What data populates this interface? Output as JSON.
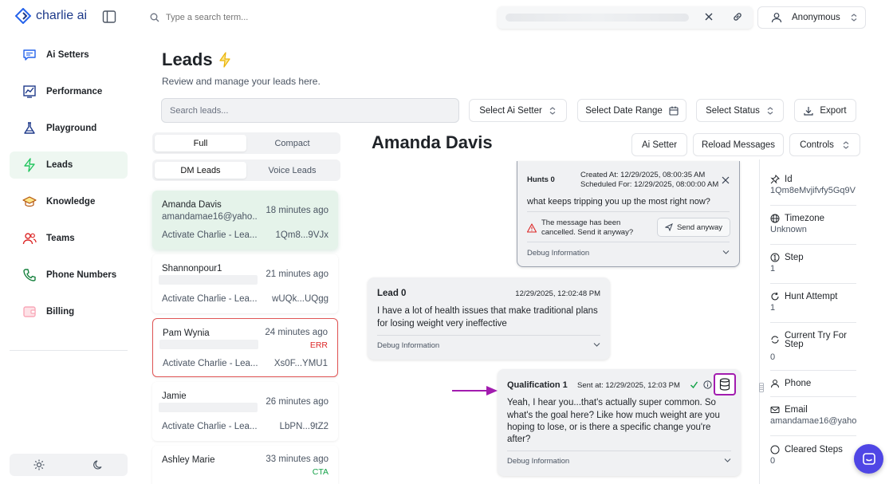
{
  "app": {
    "name": "charlie ai"
  },
  "colors": {
    "brand": "#1e3a8a",
    "active_bg": "#eef7f1",
    "accent_purple": "#a21caf",
    "err": "#dc2626",
    "cta": "#16a34a",
    "fab": "#4f46e5"
  },
  "sidebar": {
    "items": [
      {
        "label": "Ai Setters",
        "icon": "chat-icon"
      },
      {
        "label": "Performance",
        "icon": "chart-icon"
      },
      {
        "label": "Playground",
        "icon": "flask-icon"
      },
      {
        "label": "Leads",
        "icon": "bolt-icon",
        "active": true
      },
      {
        "label": "Knowledge",
        "icon": "graduation-cap-icon"
      },
      {
        "label": "Teams",
        "icon": "users-icon"
      },
      {
        "label": "Phone Numbers",
        "icon": "phone-icon"
      },
      {
        "label": "Billing",
        "icon": "wallet-icon"
      }
    ]
  },
  "topbar": {
    "search_placeholder": "Type a search term...",
    "user": "Anonymous"
  },
  "leads_page": {
    "title": "Leads",
    "subtitle": "Review and manage your leads here.",
    "search_placeholder": "Search leads...",
    "filters": {
      "ai_setter": "Select Ai Setter",
      "date_range": "Select Date Range",
      "status": "Select Status",
      "export": "Export"
    },
    "view_tabs": {
      "full": "Full",
      "compact": "Compact"
    },
    "type_tabs": {
      "dm": "DM Leads",
      "voice": "Voice Leads"
    }
  },
  "leads": [
    {
      "name": "Amanda Davis",
      "email": "amandamae16@yaho...",
      "time": "18 minutes ago",
      "action": "Activate Charlie - Lea...",
      "id": "1Qm8...9VJx"
    },
    {
      "name": "Shannonpour1",
      "time": "21 minutes ago",
      "action": "Activate Charlie - Lea...",
      "id": "wUQk...UQgg"
    },
    {
      "name": "Pam Wynia",
      "time": "24 minutes ago",
      "badge": "ERR",
      "action": "Activate Charlie - Lea...",
      "id": "Xs0F...YMU1"
    },
    {
      "name": "Jamie",
      "time": "26 minutes ago",
      "action": "Activate Charlie - Lea...",
      "id": "LbPN...9tZ2"
    },
    {
      "name": "Ashley Marie",
      "time": "33 minutes ago",
      "badge": "CTA"
    }
  ],
  "conversation": {
    "lead_name": "Amanda Davis",
    "buttons": {
      "ai_setter": "Ai Setter",
      "reload": "Reload Messages",
      "controls": "Controls"
    },
    "messages": {
      "hunt": {
        "label": "Hunts 0",
        "created": "Created At: 12/29/2025, 08:00:35 AM",
        "scheduled": "Scheduled For: 12/29/2025, 08:00:00 AM",
        "text": "what keeps tripping you up the most right now?",
        "warning": "The message has been cancelled. Send it anyway?",
        "send_anyway": "Send anyway",
        "debug": "Debug Information"
      },
      "lead": {
        "label": "Lead 0",
        "time": "12/29/2025, 12:02:48 PM",
        "text_line1": "I have a lot of health issues that make traditional plans",
        "text_line2": "for losing weight very ineffective",
        "debug": "Debug Information"
      },
      "qualification": {
        "label": "Qualification 1",
        "sent": "Sent at: 12/29/2025, 12:03 PM",
        "text_line1": "Yeah, I hear you...that's actually super common. So",
        "text_line2": "what's the goal here? Like how much weight are you",
        "text_line3": "hoping to lose, or is there a specific change you're",
        "text_line4": "after?",
        "debug": "Debug Information"
      }
    }
  },
  "details": [
    {
      "label": "Id",
      "value": "1Qm8eMvjifvfy5Gq9V",
      "icon": "pin-icon"
    },
    {
      "label": "Timezone",
      "value": "Unknown",
      "icon": "globe-icon"
    },
    {
      "label": "Step",
      "value": "1",
      "icon": "step-icon"
    },
    {
      "label": "Hunt Attempt",
      "value": "1",
      "icon": "refresh-icon"
    },
    {
      "label": "Current Try For",
      "label2": "Step",
      "value": "0",
      "icon": "retry-icon"
    },
    {
      "label": "Phone",
      "value": "",
      "icon": "person-icon"
    },
    {
      "label": "Email",
      "value": "amandamae16@yahoo",
      "icon": "mail-icon"
    },
    {
      "label": "Cleared Steps",
      "value": "0",
      "icon": "circle-icon"
    }
  ]
}
